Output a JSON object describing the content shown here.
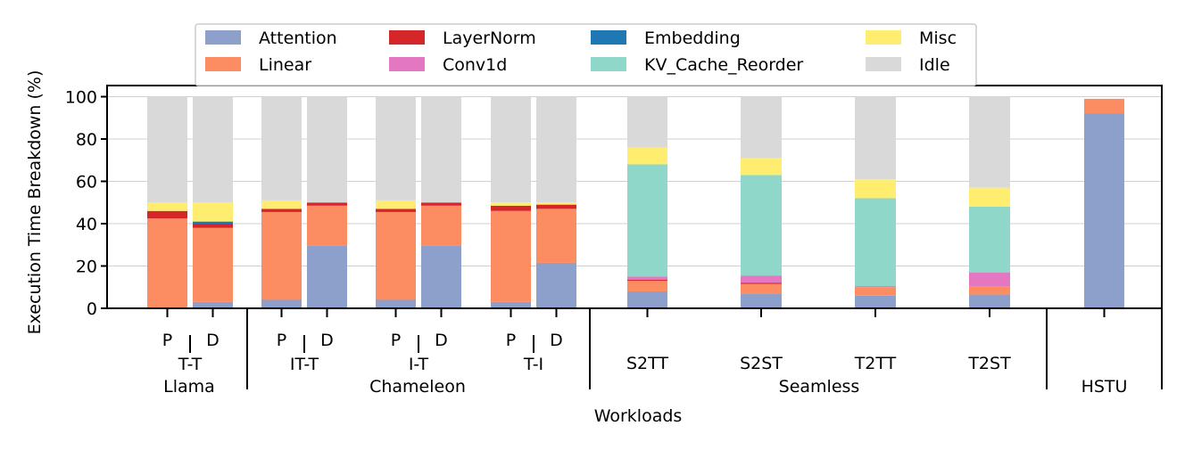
{
  "chart_data": {
    "type": "bar",
    "stacked": true,
    "xlabel": "Workloads",
    "ylabel": "Execution Time Breakdown (%)",
    "ylim": [
      0,
      100
    ],
    "yticks": [
      0,
      20,
      40,
      60,
      80,
      100
    ],
    "grid": true,
    "legend_position": "top-center",
    "legend_rows": [
      [
        "Attention",
        "LayerNorm",
        "Embedding",
        "Misc"
      ],
      [
        "Linear",
        "Conv1d",
        "KV_Cache_Reorder",
        "Idle"
      ]
    ],
    "colors": {
      "Attention": "#8da0cb",
      "Linear": "#fc8d62",
      "LayerNorm": "#d62728",
      "Conv1d": "#e377c2",
      "Embedding": "#1f77b4",
      "KV_Cache_Reorder": "#8fd7c8",
      "Misc": "#ffed6f",
      "Idle": "#d9d9d9"
    },
    "stack_order": [
      "Attention",
      "Linear",
      "LayerNorm",
      "Conv1d",
      "Embedding",
      "KV_Cache_Reorder",
      "Misc",
      "Idle"
    ],
    "groups": [
      {
        "name": "Llama",
        "subgroups": [
          {
            "name": "T-T",
            "bars": [
              "P",
              "D"
            ]
          }
        ]
      },
      {
        "name": "Chameleon",
        "subgroups": [
          {
            "name": "IT-T",
            "bars": [
              "P",
              "D"
            ]
          },
          {
            "name": "I-T",
            "bars": [
              "P",
              "D"
            ]
          },
          {
            "name": "T-I",
            "bars": [
              "P",
              "D"
            ]
          }
        ]
      },
      {
        "name": "Seamless",
        "subgroups": [
          {
            "name": "S2TT",
            "bars": [
              ""
            ]
          },
          {
            "name": "S2ST",
            "bars": [
              ""
            ]
          },
          {
            "name": "T2TT",
            "bars": [
              ""
            ]
          },
          {
            "name": "T2ST",
            "bars": [
              ""
            ]
          }
        ]
      },
      {
        "name": "HSTU",
        "subgroups": [
          {
            "name": "",
            "bars": [
              ""
            ]
          }
        ]
      }
    ],
    "bars": [
      {
        "id": "T-T-P",
        "Attention": 0,
        "Linear": 42.5,
        "LayerNorm": 3.5,
        "Conv1d": 0,
        "Embedding": 0,
        "KV_Cache_Reorder": 0,
        "Misc": 4,
        "Idle": 50
      },
      {
        "id": "T-T-D",
        "Attention": 3,
        "Linear": 35,
        "LayerNorm": 2,
        "Conv1d": 0,
        "Embedding": 1,
        "KV_Cache_Reorder": 0,
        "Misc": 9,
        "Idle": 50
      },
      {
        "id": "IT-T-P",
        "Attention": 4,
        "Linear": 41.5,
        "LayerNorm": 1.5,
        "Conv1d": 0,
        "Embedding": 0,
        "KV_Cache_Reorder": 0,
        "Misc": 4,
        "Idle": 49
      },
      {
        "id": "IT-T-D",
        "Attention": 29.5,
        "Linear": 19,
        "LayerNorm": 1.5,
        "Conv1d": 0,
        "Embedding": 0,
        "KV_Cache_Reorder": 0,
        "Misc": 0,
        "Idle": 50
      },
      {
        "id": "I-T-P",
        "Attention": 4,
        "Linear": 41.5,
        "LayerNorm": 1.5,
        "Conv1d": 0,
        "Embedding": 0,
        "KV_Cache_Reorder": 0,
        "Misc": 4,
        "Idle": 49
      },
      {
        "id": "I-T-D",
        "Attention": 29.5,
        "Linear": 19,
        "LayerNorm": 1.5,
        "Conv1d": 0,
        "Embedding": 0,
        "KV_Cache_Reorder": 0,
        "Misc": 0,
        "Idle": 50
      },
      {
        "id": "T-I-P",
        "Attention": 3,
        "Linear": 43,
        "LayerNorm": 2.5,
        "Conv1d": 0,
        "Embedding": 0,
        "KV_Cache_Reorder": 0,
        "Misc": 1.5,
        "Idle": 50
      },
      {
        "id": "T-I-D",
        "Attention": 21.5,
        "Linear": 25.5,
        "LayerNorm": 2,
        "Conv1d": 0,
        "Embedding": 0,
        "KV_Cache_Reorder": 0,
        "Misc": 1,
        "Idle": 50
      },
      {
        "id": "S2TT",
        "Attention": 8,
        "Linear": 5,
        "LayerNorm": 0.5,
        "Conv1d": 1.5,
        "Embedding": 0,
        "KV_Cache_Reorder": 53,
        "Misc": 8,
        "Idle": 24
      },
      {
        "id": "S2ST",
        "Attention": 7,
        "Linear": 4.5,
        "LayerNorm": 0.5,
        "Conv1d": 3.5,
        "Embedding": 0,
        "KV_Cache_Reorder": 47.5,
        "Misc": 8,
        "Idle": 29
      },
      {
        "id": "T2TT",
        "Attention": 6,
        "Linear": 4,
        "LayerNorm": 0,
        "Conv1d": 0.5,
        "Embedding": 0,
        "KV_Cache_Reorder": 41.5,
        "Misc": 9,
        "Idle": 39
      },
      {
        "id": "T2ST",
        "Attention": 6.5,
        "Linear": 4,
        "LayerNorm": 0,
        "Conv1d": 6.5,
        "Embedding": 0,
        "KV_Cache_Reorder": 31,
        "Misc": 9,
        "Idle": 43
      },
      {
        "id": "HSTU",
        "Attention": 92,
        "Linear": 7,
        "LayerNorm": 0,
        "Conv1d": 0,
        "Embedding": 0,
        "KV_Cache_Reorder": 0,
        "Misc": 0,
        "Idle": 0
      }
    ]
  }
}
